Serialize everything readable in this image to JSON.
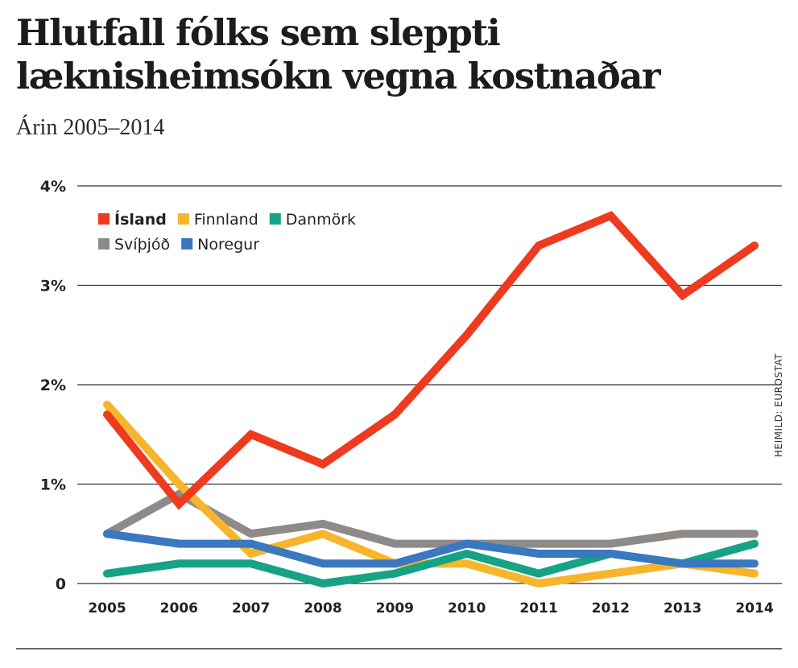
{
  "chart_data": {
    "type": "line",
    "title": "Hlutfall fólks sem sleppti læknisheimsókn vegna kostnaðar",
    "subtitle": "Árin 2005–2014",
    "xlabel": "",
    "ylabel": "",
    "x": [
      "2005",
      "2006",
      "2007",
      "2008",
      "2009",
      "2010",
      "2011",
      "2012",
      "2013",
      "2014"
    ],
    "ylim": [
      0,
      4
    ],
    "yticks": [
      {
        "value": 0,
        "label": "0"
      },
      {
        "value": 1,
        "label": "1%"
      },
      {
        "value": 2,
        "label": "2%"
      },
      {
        "value": 3,
        "label": "3%"
      },
      {
        "value": 4,
        "label": "4%"
      }
    ],
    "grid": true,
    "legend_position": "top-left",
    "source": "HEIMILD: EUROSTAT",
    "series": [
      {
        "name": "Svíþjóð",
        "color": "#8e8a88",
        "bold": false,
        "values": [
          0.5,
          0.9,
          0.5,
          0.6,
          0.4,
          0.4,
          0.4,
          0.4,
          0.5,
          0.5
        ]
      },
      {
        "name": "Finnland",
        "color": "#f7b52c",
        "bold": false,
        "values": [
          1.8,
          1.0,
          0.3,
          0.5,
          0.2,
          0.2,
          0.0,
          0.1,
          0.2,
          0.1
        ]
      },
      {
        "name": "Danmörk",
        "color": "#16a385",
        "bold": false,
        "values": [
          0.1,
          0.2,
          0.2,
          0.0,
          0.1,
          0.3,
          0.1,
          0.3,
          0.2,
          0.4
        ]
      },
      {
        "name": "Noregur",
        "color": "#3a78c0",
        "bold": false,
        "values": [
          0.5,
          0.4,
          0.4,
          0.2,
          0.2,
          0.4,
          0.3,
          0.3,
          0.2,
          0.2
        ]
      },
      {
        "name": "Ísland",
        "color": "#ee3a1f",
        "bold": true,
        "values": [
          1.7,
          0.8,
          1.5,
          1.2,
          1.7,
          2.5,
          3.4,
          3.7,
          2.9,
          3.4
        ]
      }
    ],
    "legend_order": [
      [
        "Ísland",
        "Finnland",
        "Danmörk"
      ],
      [
        "Svíþjóð",
        "Noregur"
      ]
    ]
  }
}
